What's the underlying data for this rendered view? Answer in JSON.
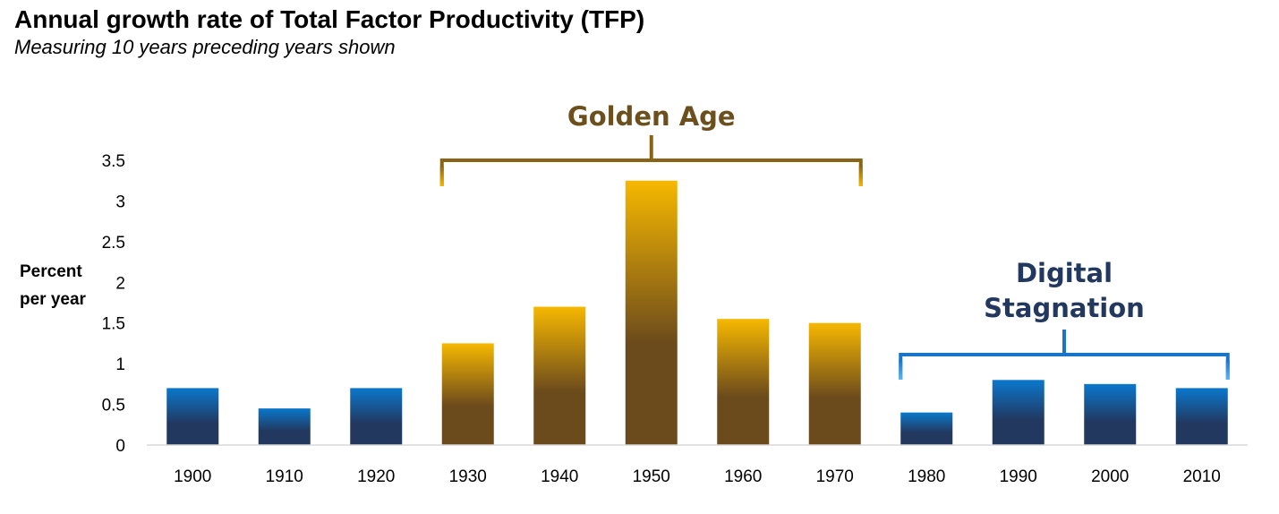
{
  "header": {
    "title": "Annual growth rate of Total Factor Productivity (TFP)",
    "subtitle": "Measuring 10 years preceding years shown"
  },
  "chart_data": {
    "type": "bar",
    "title": "Annual growth rate of Total Factor Productivity (TFP)",
    "subtitle": "Measuring 10 years preceding years shown",
    "ylabel_lines": [
      "Percent",
      "per year"
    ],
    "xlabel": "",
    "ylim": [
      0,
      3.5
    ],
    "yticks": [
      "0",
      "0.5",
      "1",
      "1.5",
      "2",
      "2.5",
      "3",
      "3.5"
    ],
    "grid": false,
    "legend": "none",
    "categories": [
      "1900",
      "1910",
      "1920",
      "1930",
      "1940",
      "1950",
      "1960",
      "1970",
      "1980",
      "1990",
      "2000",
      "2010"
    ],
    "values": [
      0.7,
      0.45,
      0.7,
      1.25,
      1.7,
      3.25,
      1.55,
      1.5,
      0.4,
      0.8,
      0.75,
      0.7
    ],
    "groups": [
      "blue",
      "blue",
      "blue",
      "gold",
      "gold",
      "gold",
      "gold",
      "gold",
      "blue",
      "blue",
      "blue",
      "blue"
    ],
    "colors": {
      "gold_top": "#f6b800",
      "gold_bottom": "#6b4a1c",
      "blue_top": "#0a78cc",
      "blue_bottom": "#22385f",
      "gold_bracket": "#8a6416",
      "blue_bracket": "#1a74c8"
    },
    "annotations": [
      {
        "name": "golden-age",
        "lines": [
          "Golden Age"
        ],
        "from": "1930",
        "to": "1970",
        "color": "gold"
      },
      {
        "name": "digital-stagnation",
        "lines": [
          "Digital",
          "Stagnation"
        ],
        "from": "1980",
        "to": "2010",
        "color": "blue"
      }
    ]
  }
}
